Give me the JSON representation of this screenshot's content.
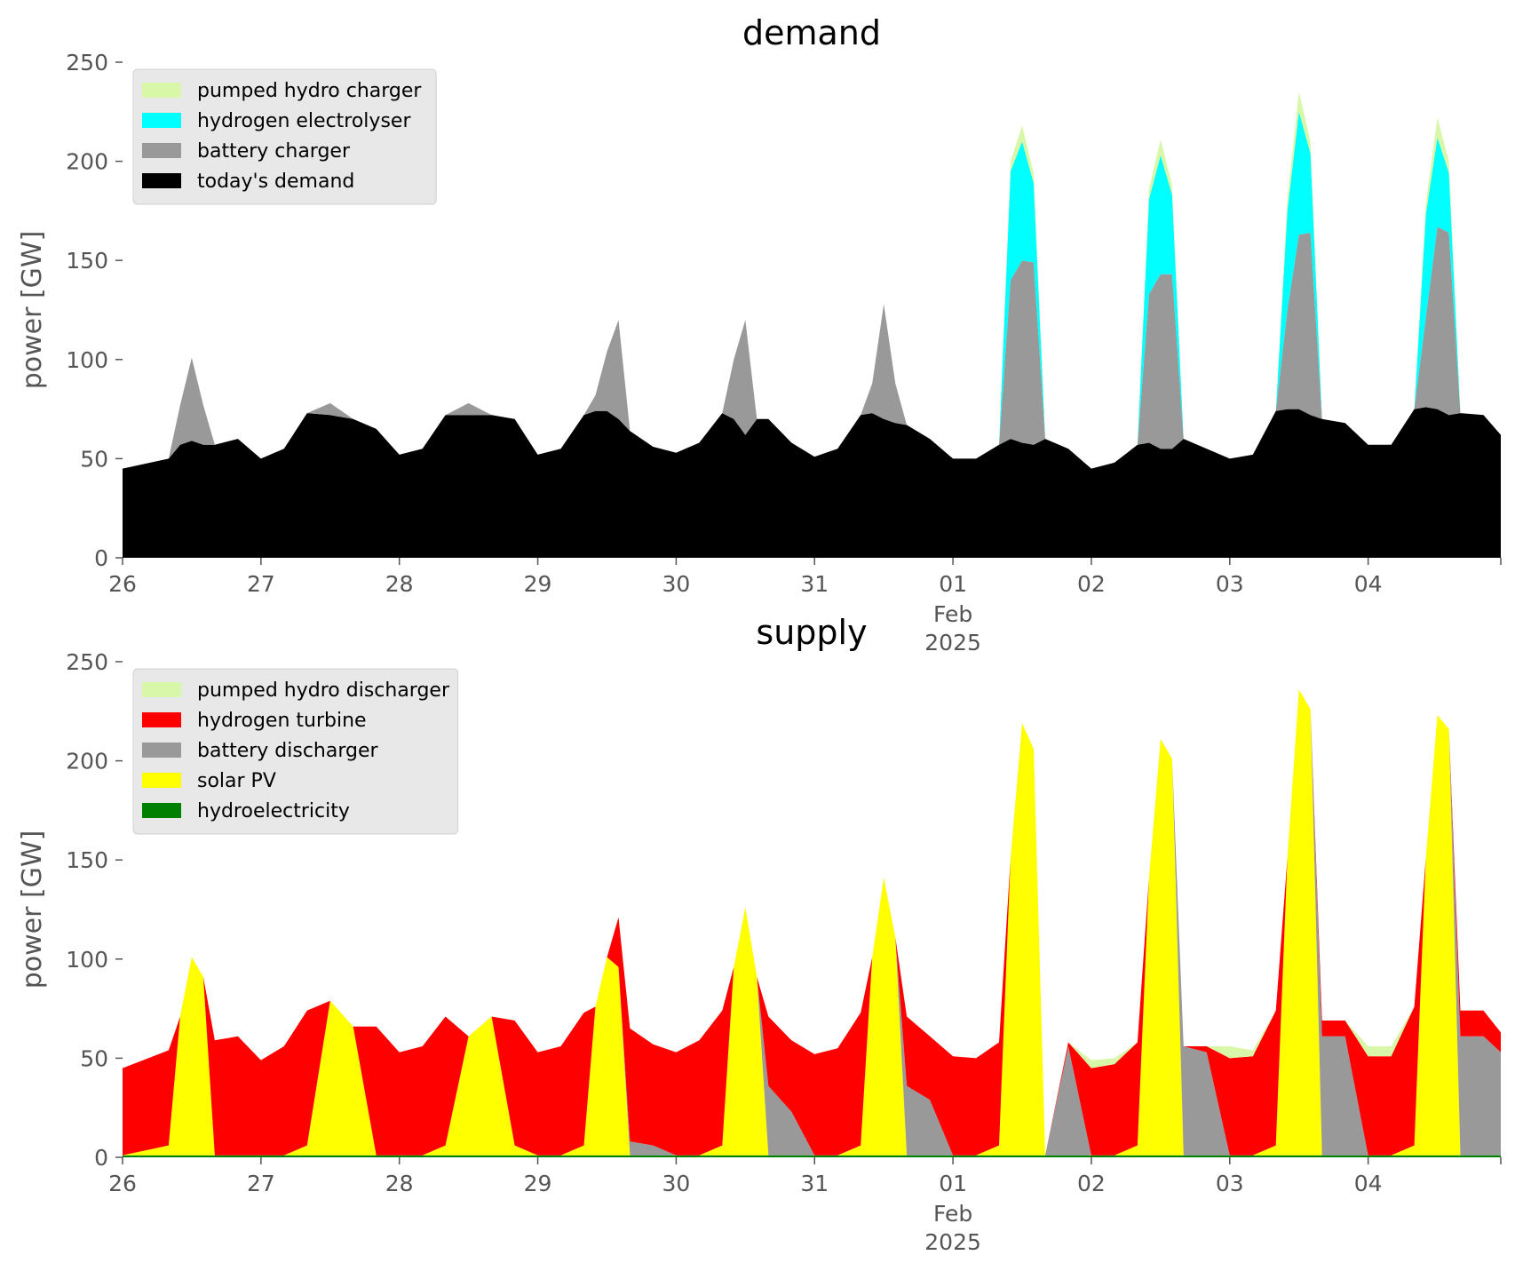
{
  "chart_data": [
    {
      "type": "area",
      "stacked": true,
      "title": "demand",
      "xlabel": "",
      "ylabel": "power [GW]",
      "ylim": [
        0,
        250
      ],
      "yticks": [
        0,
        50,
        100,
        150,
        200,
        250
      ],
      "xlim": [
        "2025-01-26 00:00",
        "2025-02-04 23:00"
      ],
      "xticks": [
        {
          "date": "2025-01-26",
          "label": "26"
        },
        {
          "date": "2025-01-27",
          "label": "27"
        },
        {
          "date": "2025-01-28",
          "label": "28"
        },
        {
          "date": "2025-01-29",
          "label": "29"
        },
        {
          "date": "2025-01-30",
          "label": "30"
        },
        {
          "date": "2025-01-31",
          "label": "31"
        },
        {
          "date": "2025-02-01",
          "label": "01",
          "sublabel": [
            "Feb",
            "2025"
          ]
        },
        {
          "date": "2025-02-02",
          "label": "02"
        },
        {
          "date": "2025-02-03",
          "label": "03"
        },
        {
          "date": "2025-02-04",
          "label": "04"
        }
      ],
      "grid": false,
      "legend_position": "top-left",
      "x": [
        "2025-01-26 00:00",
        "2025-01-26 08:00",
        "2025-01-26 10:00",
        "2025-01-26 12:00",
        "2025-01-26 14:00",
        "2025-01-26 16:00",
        "2025-01-26 20:00",
        "2025-01-27 00:00",
        "2025-01-27 04:00",
        "2025-01-27 08:00",
        "2025-01-27 12:00",
        "2025-01-27 16:00",
        "2025-01-27 20:00",
        "2025-01-28 00:00",
        "2025-01-28 04:00",
        "2025-01-28 08:00",
        "2025-01-28 12:00",
        "2025-01-28 16:00",
        "2025-01-28 20:00",
        "2025-01-29 00:00",
        "2025-01-29 04:00",
        "2025-01-29 08:00",
        "2025-01-29 10:00",
        "2025-01-29 12:00",
        "2025-01-29 14:00",
        "2025-01-29 16:00",
        "2025-01-29 20:00",
        "2025-01-30 00:00",
        "2025-01-30 04:00",
        "2025-01-30 08:00",
        "2025-01-30 10:00",
        "2025-01-30 12:00",
        "2025-01-30 14:00",
        "2025-01-30 16:00",
        "2025-01-30 20:00",
        "2025-01-31 00:00",
        "2025-01-31 04:00",
        "2025-01-31 08:00",
        "2025-01-31 10:00",
        "2025-01-31 12:00",
        "2025-01-31 14:00",
        "2025-01-31 16:00",
        "2025-01-31 20:00",
        "2025-02-01 00:00",
        "2025-02-01 04:00",
        "2025-02-01 08:00",
        "2025-02-01 10:00",
        "2025-02-01 12:00",
        "2025-02-01 14:00",
        "2025-02-01 16:00",
        "2025-02-01 20:00",
        "2025-02-02 00:00",
        "2025-02-02 04:00",
        "2025-02-02 08:00",
        "2025-02-02 10:00",
        "2025-02-02 12:00",
        "2025-02-02 14:00",
        "2025-02-02 16:00",
        "2025-02-02 20:00",
        "2025-02-03 00:00",
        "2025-02-03 04:00",
        "2025-02-03 08:00",
        "2025-02-03 10:00",
        "2025-02-03 12:00",
        "2025-02-03 14:00",
        "2025-02-03 16:00",
        "2025-02-03 20:00",
        "2025-02-04 00:00",
        "2025-02-04 04:00",
        "2025-02-04 08:00",
        "2025-02-04 10:00",
        "2025-02-04 12:00",
        "2025-02-04 14:00",
        "2025-02-04 16:00",
        "2025-02-04 20:00",
        "2025-02-04 23:00"
      ],
      "series": [
        {
          "name": "today's demand",
          "color": "#000000",
          "values": [
            45,
            50,
            57,
            59,
            57,
            57,
            60,
            50,
            55,
            73,
            72,
            70,
            65,
            52,
            55,
            72,
            72,
            72,
            70,
            52,
            55,
            72,
            74,
            74,
            70,
            64,
            56,
            53,
            58,
            73,
            70,
            62,
            70,
            70,
            58,
            51,
            55,
            72,
            73,
            70,
            68,
            67,
            60,
            50,
            50,
            57,
            60,
            58,
            57,
            60,
            55,
            45,
            48,
            57,
            58,
            55,
            55,
            60,
            55,
            50,
            52,
            74,
            75,
            75,
            72,
            70,
            68,
            57,
            57,
            75,
            76,
            75,
            72,
            73,
            72,
            62
          ]
        },
        {
          "name": "battery charger",
          "color": "#999999",
          "values": [
            0,
            0,
            20,
            42,
            20,
            0,
            0,
            0,
            0,
            0,
            6,
            0,
            0,
            0,
            0,
            0,
            6,
            0,
            0,
            0,
            0,
            0,
            8,
            30,
            50,
            0,
            0,
            0,
            0,
            0,
            30,
            58,
            0,
            0,
            0,
            0,
            0,
            0,
            15,
            58,
            20,
            0,
            0,
            0,
            0,
            0,
            80,
            92,
            92,
            0,
            0,
            0,
            0,
            0,
            75,
            88,
            88,
            0,
            0,
            0,
            0,
            0,
            50,
            88,
            92,
            0,
            0,
            0,
            0,
            0,
            45,
            92,
            92,
            0,
            0,
            0
          ]
        },
        {
          "name": "hydrogen electrolyser",
          "color": "#00ffff",
          "values": [
            0,
            0,
            0,
            0,
            0,
            0,
            0,
            0,
            0,
            0,
            0,
            0,
            0,
            0,
            0,
            0,
            0,
            0,
            0,
            0,
            0,
            0,
            0,
            0,
            0,
            0,
            0,
            0,
            0,
            0,
            0,
            0,
            0,
            0,
            0,
            0,
            0,
            0,
            0,
            0,
            0,
            0,
            0,
            0,
            0,
            0,
            55,
            60,
            40,
            0,
            0,
            0,
            0,
            0,
            48,
            60,
            40,
            0,
            0,
            0,
            0,
            0,
            50,
            62,
            40,
            0,
            0,
            0,
            0,
            0,
            52,
            45,
            30,
            0,
            0,
            0
          ]
        },
        {
          "name": "pumped hydro charger",
          "color": "#d9f7a9",
          "values": [
            0,
            0,
            0,
            0,
            0,
            0,
            0,
            0,
            0,
            0,
            0,
            0,
            0,
            0,
            0,
            0,
            0,
            0,
            0,
            0,
            0,
            0,
            0,
            0,
            0,
            0,
            0,
            0,
            0,
            0,
            0,
            0,
            0,
            0,
            0,
            0,
            0,
            0,
            0,
            0,
            0,
            0,
            0,
            0,
            0,
            0,
            5,
            8,
            5,
            0,
            0,
            0,
            0,
            0,
            5,
            8,
            5,
            0,
            0,
            0,
            0,
            0,
            6,
            10,
            6,
            0,
            0,
            0,
            0,
            0,
            6,
            10,
            6,
            0,
            0,
            0
          ]
        }
      ],
      "legend": [
        "pumped hydro charger",
        "hydrogen electrolyser",
        "battery charger",
        "today's demand"
      ]
    },
    {
      "type": "area",
      "stacked": true,
      "title": "supply",
      "xlabel": "",
      "ylabel": "power [GW]",
      "ylim": [
        0,
        250
      ],
      "yticks": [
        0,
        50,
        100,
        150,
        200,
        250
      ],
      "xlim": [
        "2025-01-26 00:00",
        "2025-02-04 23:00"
      ],
      "xticks": [
        {
          "date": "2025-01-26",
          "label": "26"
        },
        {
          "date": "2025-01-27",
          "label": "27"
        },
        {
          "date": "2025-01-28",
          "label": "28"
        },
        {
          "date": "2025-01-29",
          "label": "29"
        },
        {
          "date": "2025-01-30",
          "label": "30"
        },
        {
          "date": "2025-01-31",
          "label": "31"
        },
        {
          "date": "2025-02-01",
          "label": "01",
          "sublabel": [
            "Feb",
            "2025"
          ]
        },
        {
          "date": "2025-02-02",
          "label": "02"
        },
        {
          "date": "2025-02-03",
          "label": "03"
        },
        {
          "date": "2025-02-04",
          "label": "04"
        }
      ],
      "grid": false,
      "legend_position": "top-left",
      "x": [
        "2025-01-26 00:00",
        "2025-01-26 08:00",
        "2025-01-26 10:00",
        "2025-01-26 12:00",
        "2025-01-26 14:00",
        "2025-01-26 16:00",
        "2025-01-26 20:00",
        "2025-01-27 00:00",
        "2025-01-27 04:00",
        "2025-01-27 08:00",
        "2025-01-27 12:00",
        "2025-01-27 16:00",
        "2025-01-27 20:00",
        "2025-01-28 00:00",
        "2025-01-28 04:00",
        "2025-01-28 08:00",
        "2025-01-28 12:00",
        "2025-01-28 16:00",
        "2025-01-28 20:00",
        "2025-01-29 00:00",
        "2025-01-29 04:00",
        "2025-01-29 08:00",
        "2025-01-29 10:00",
        "2025-01-29 12:00",
        "2025-01-29 14:00",
        "2025-01-29 16:00",
        "2025-01-29 20:00",
        "2025-01-30 00:00",
        "2025-01-30 04:00",
        "2025-01-30 08:00",
        "2025-01-30 10:00",
        "2025-01-30 12:00",
        "2025-01-30 14:00",
        "2025-01-30 16:00",
        "2025-01-30 20:00",
        "2025-01-31 00:00",
        "2025-01-31 04:00",
        "2025-01-31 08:00",
        "2025-01-31 10:00",
        "2025-01-31 12:00",
        "2025-01-31 14:00",
        "2025-01-31 16:00",
        "2025-01-31 20:00",
        "2025-02-01 00:00",
        "2025-02-01 04:00",
        "2025-02-01 08:00",
        "2025-02-01 10:00",
        "2025-02-01 12:00",
        "2025-02-01 14:00",
        "2025-02-01 16:00",
        "2025-02-01 20:00",
        "2025-02-02 00:00",
        "2025-02-02 04:00",
        "2025-02-02 08:00",
        "2025-02-02 10:00",
        "2025-02-02 12:00",
        "2025-02-02 14:00",
        "2025-02-02 16:00",
        "2025-02-02 20:00",
        "2025-02-03 00:00",
        "2025-02-03 04:00",
        "2025-02-03 08:00",
        "2025-02-03 10:00",
        "2025-02-03 12:00",
        "2025-02-03 14:00",
        "2025-02-03 16:00",
        "2025-02-03 20:00",
        "2025-02-04 00:00",
        "2025-02-04 04:00",
        "2025-02-04 08:00",
        "2025-02-04 10:00",
        "2025-02-04 12:00",
        "2025-02-04 14:00",
        "2025-02-04 16:00",
        "2025-02-04 20:00",
        "2025-02-04 23:00"
      ],
      "series": [
        {
          "name": "hydroelectricity",
          "color": "#008000",
          "values": [
            1,
            1,
            1,
            1,
            1,
            1,
            1,
            1,
            1,
            1,
            1,
            1,
            1,
            1,
            1,
            1,
            1,
            1,
            1,
            1,
            1,
            1,
            1,
            1,
            1,
            1,
            1,
            1,
            1,
            1,
            1,
            1,
            1,
            1,
            1,
            1,
            1,
            1,
            1,
            1,
            1,
            1,
            1,
            1,
            1,
            1,
            1,
            1,
            1,
            1,
            1,
            1,
            1,
            1,
            1,
            1,
            1,
            1,
            1,
            1,
            1,
            1,
            1,
            1,
            1,
            1,
            1,
            1,
            1,
            1,
            1,
            1,
            1,
            1,
            1,
            1
          ]
        },
        {
          "name": "solar PV",
          "color": "#ffff00",
          "values": [
            0,
            5,
            70,
            100,
            90,
            0,
            0,
            0,
            0,
            5,
            78,
            65,
            0,
            0,
            0,
            5,
            60,
            70,
            5,
            0,
            0,
            5,
            75,
            100,
            95,
            0,
            0,
            0,
            0,
            5,
            95,
            125,
            90,
            0,
            0,
            0,
            0,
            5,
            100,
            140,
            110,
            0,
            0,
            0,
            0,
            5,
            150,
            218,
            205,
            0,
            0,
            0,
            0,
            5,
            140,
            210,
            200,
            0,
            0,
            0,
            0,
            5,
            150,
            235,
            225,
            0,
            0,
            0,
            0,
            5,
            150,
            222,
            215,
            0,
            0,
            0
          ]
        },
        {
          "name": "battery discharger",
          "color": "#999999",
          "values": [
            0,
            0,
            0,
            0,
            0,
            0,
            0,
            0,
            0,
            0,
            0,
            0,
            0,
            0,
            0,
            0,
            0,
            0,
            0,
            0,
            0,
            0,
            0,
            0,
            0,
            7,
            5,
            0,
            0,
            0,
            0,
            0,
            0,
            35,
            22,
            0,
            0,
            0,
            0,
            0,
            0,
            35,
            28,
            0,
            0,
            0,
            0,
            0,
            0,
            0,
            55,
            0,
            0,
            0,
            0,
            0,
            0,
            55,
            52,
            0,
            0,
            0,
            0,
            0,
            0,
            60,
            60,
            0,
            0,
            0,
            0,
            0,
            0,
            60,
            60,
            52
          ]
        },
        {
          "name": "hydrogen turbine",
          "color": "#ff0000",
          "values": [
            44,
            48,
            0,
            0,
            0,
            58,
            60,
            48,
            55,
            68,
            0,
            0,
            65,
            52,
            55,
            65,
            0,
            0,
            63,
            52,
            55,
            67,
            0,
            0,
            25,
            57,
            51,
            52,
            58,
            68,
            0,
            0,
            0,
            35,
            36,
            51,
            54,
            67,
            0,
            0,
            0,
            35,
            32,
            50,
            49,
            52,
            0,
            0,
            0,
            0,
            2,
            44,
            46,
            52,
            0,
            0,
            0,
            0,
            3,
            49,
            50,
            68,
            0,
            0,
            0,
            8,
            8,
            50,
            50,
            70,
            0,
            0,
            0,
            13,
            13,
            10
          ]
        },
        {
          "name": "pumped hydro discharger",
          "color": "#d9f7a9",
          "values": [
            0,
            0,
            0,
            0,
            0,
            0,
            0,
            0,
            0,
            0,
            0,
            0,
            0,
            0,
            0,
            0,
            0,
            0,
            0,
            0,
            0,
            0,
            0,
            0,
            0,
            0,
            0,
            0,
            0,
            0,
            0,
            0,
            0,
            0,
            0,
            0,
            0,
            0,
            0,
            0,
            0,
            0,
            0,
            0,
            0,
            0,
            0,
            0,
            0,
            0,
            0,
            4,
            3,
            0,
            0,
            0,
            0,
            0,
            0,
            6,
            3,
            0,
            0,
            0,
            0,
            0,
            0,
            5,
            5,
            0,
            0,
            0,
            0,
            0,
            0,
            0
          ]
        }
      ],
      "legend": [
        "pumped hydro discharger",
        "hydrogen turbine",
        "battery discharger",
        "solar PV",
        "hydroelectricity"
      ]
    }
  ]
}
